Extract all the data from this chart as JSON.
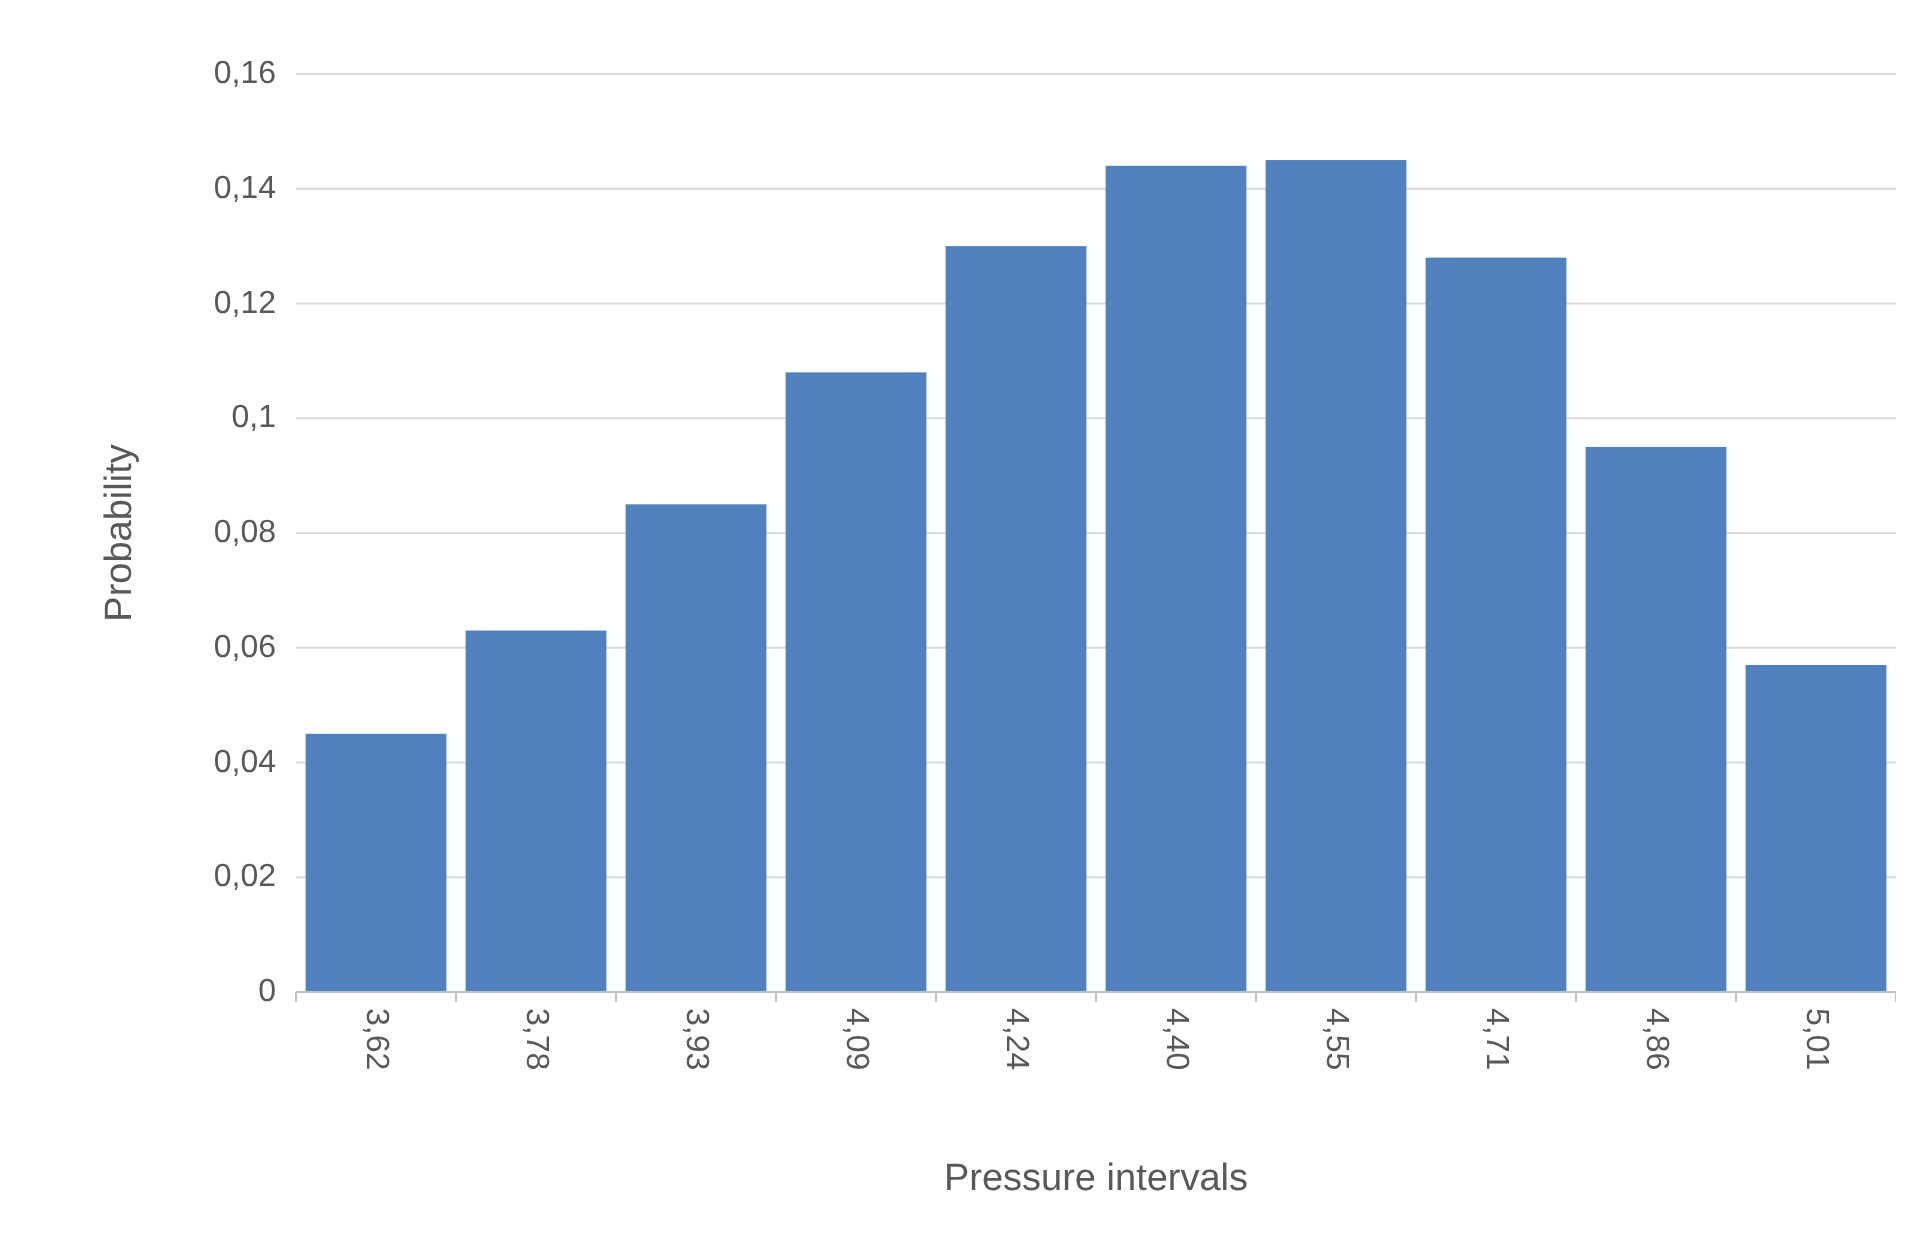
{
  "chart_data": {
    "type": "bar",
    "xlabel": "Pressure intervals",
    "ylabel": "Probability",
    "categories": [
      "3,62",
      "3,78",
      "3,93",
      "4,09",
      "4,24",
      "4,40",
      "4,55",
      "4,71",
      "4,86",
      "5,01"
    ],
    "values": [
      0.045,
      0.063,
      0.085,
      0.108,
      0.13,
      0.144,
      0.145,
      0.128,
      0.095,
      0.057
    ],
    "color": "#4f81bd",
    "ylim": [
      0,
      0.16
    ],
    "yticks": [
      0,
      {
        "value": 0.02,
        "label": "0,02"
      },
      {
        "value": 0.04,
        "label": "0,04"
      },
      {
        "value": 0.06,
        "label": "0,06"
      },
      {
        "value": 0.08,
        "label": "0,08"
      },
      {
        "value": 0.1,
        "label": "0,1"
      },
      {
        "value": 0.12,
        "label": "0,12"
      },
      {
        "value": 0.14,
        "label": "0,14"
      },
      {
        "value": 0.16,
        "label": "0,16"
      }
    ],
    "grid": "y"
  }
}
